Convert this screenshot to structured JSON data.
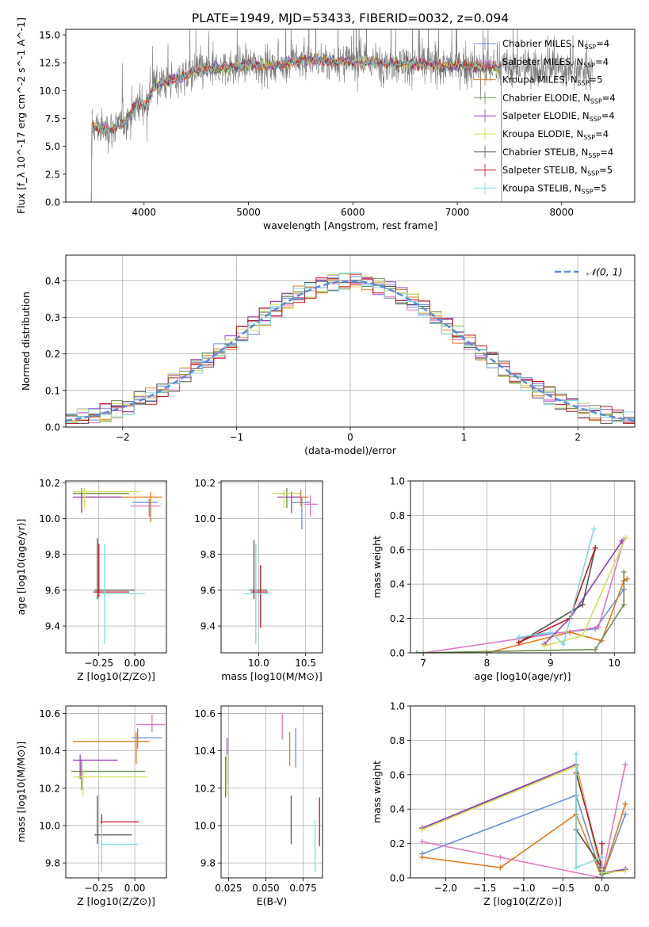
{
  "figure_title": "PLATE=1949, MJD=53433, FIBERID=0032, z=0.094",
  "colors": {
    "Chabrier MILES": "#6a8fd8",
    "Salpeter MILES": "#e377c2",
    "Kroupa MILES": "#e07b20",
    "Chabrier ELODIE": "#6b8e4e",
    "Salpeter ELODIE": "#9540b5",
    "Kroupa ELODIE": "#d4e05a",
    "Chabrier STELIB": "#555555",
    "Salpeter STELIB": "#c0181f",
    "Kroupa STELIB": "#7fd9dd"
  },
  "chart_data": [
    {
      "id": "spectrum",
      "type": "line",
      "xlabel": "wavelength [Angstrom, rest frame]",
      "ylabel": "Flux [f_λ 10^-17 erg cm^-2 s^-1 A^-1]",
      "xlim": [
        3250,
        8700
      ],
      "ylim": [
        0,
        15.5
      ],
      "xticks": [
        4000,
        5000,
        6000,
        7000,
        8000
      ],
      "yticks": [
        0.0,
        2.5,
        5.0,
        7.5,
        10.0,
        12.5,
        15.0
      ],
      "data_range": [
        3500,
        8300
      ],
      "model_range": [
        3500,
        7420
      ],
      "legend_position": "upper-right",
      "legend": [
        {
          "model": "Chabrier MILES",
          "nssp": "4"
        },
        {
          "model": "Salpeter MILES",
          "nssp": "4"
        },
        {
          "model": "Kroupa MILES",
          "nssp": "5"
        },
        {
          "model": "Chabrier ELODIE",
          "nssp": "4"
        },
        {
          "model": "Salpeter ELODIE",
          "nssp": "4"
        },
        {
          "model": "Kroupa ELODIE",
          "nssp": "4"
        },
        {
          "model": "Chabrier STELIB",
          "nssp": "4"
        },
        {
          "model": "Salpeter STELIB",
          "nssp": "5"
        },
        {
          "model": "Kroupa STELIB",
          "nssp": "5"
        }
      ],
      "continuum": [
        [
          3500,
          6.8
        ],
        [
          3650,
          6.5
        ],
        [
          3800,
          7.0
        ],
        [
          3950,
          9.0
        ],
        [
          4000,
          8.5
        ],
        [
          4100,
          10.5
        ],
        [
          4300,
          11.0
        ],
        [
          4500,
          11.8
        ],
        [
          4800,
          12.1
        ],
        [
          5000,
          12.4
        ],
        [
          5200,
          12.2
        ],
        [
          5500,
          12.7
        ],
        [
          5800,
          12.6
        ],
        [
          6000,
          12.6
        ],
        [
          6300,
          12.5
        ],
        [
          6600,
          12.4
        ],
        [
          7000,
          12.2
        ],
        [
          7300,
          12.1
        ],
        [
          7600,
          12.0
        ],
        [
          8000,
          12.0
        ],
        [
          8300,
          11.8
        ]
      ]
    },
    {
      "id": "residuals",
      "type": "histogram",
      "xlabel": "(data-model)/error",
      "ylabel": "Normed distribution",
      "xlim": [
        -2.5,
        2.5
      ],
      "ylim": [
        0,
        0.47
      ],
      "xticks": [
        -2,
        -1,
        0,
        1,
        2
      ],
      "yticks": [
        0.0,
        0.1,
        0.2,
        0.3,
        0.4
      ],
      "grid": true,
      "legend_position": "upper-right",
      "reference_label": "𝒩(0, 1)",
      "bin_width": 0.1
    },
    {
      "id": "age-vs-Z",
      "type": "errorbar",
      "xlabel": "Z [log10(Z/Z⊙)]",
      "ylabel": "age [log10(age/yr)]",
      "xlim": [
        -0.48,
        0.22
      ],
      "ylim": [
        9.25,
        10.21
      ],
      "xticks": [
        -0.25,
        0.0
      ],
      "xtick_labels": [
        "−0.25",
        "0.00"
      ],
      "yticks": [
        9.4,
        9.6,
        9.8,
        10.0,
        10.2
      ],
      "grid": true,
      "points": [
        {
          "model": "Chabrier MILES",
          "x": 0.1,
          "y": 10.09,
          "xerr": [
            0.12,
            0.06
          ],
          "yerr": [
            0.08,
            0.02
          ]
        },
        {
          "model": "Salpeter MILES",
          "x": 0.11,
          "y": 10.07,
          "xerr": [
            0.14,
            0.07
          ],
          "yerr": [
            0.05,
            0.03
          ]
        },
        {
          "model": "Kroupa MILES",
          "x": 0.11,
          "y": 10.12,
          "xerr": [
            0.45,
            0.08
          ],
          "yerr": [
            0.14,
            0.03
          ]
        },
        {
          "model": "Chabrier ELODIE",
          "x": -0.37,
          "y": 10.14,
          "xerr": [
            0.06,
            0.33
          ],
          "yerr": [
            0.11,
            0.03
          ]
        },
        {
          "model": "Salpeter ELODIE",
          "x": -0.37,
          "y": 10.12,
          "xerr": [
            0.06,
            0.28
          ],
          "yerr": [
            0.08,
            0.03
          ]
        },
        {
          "model": "Kroupa ELODIE",
          "x": -0.35,
          "y": 10.15,
          "xerr": [
            0.08,
            0.39
          ],
          "yerr": [
            0.09,
            0.02
          ]
        },
        {
          "model": "Chabrier STELIB",
          "x": -0.26,
          "y": 9.6,
          "xerr": [
            0.02,
            0.26
          ],
          "yerr": [
            0.05,
            0.29
          ]
        },
        {
          "model": "Salpeter STELIB",
          "x": -0.25,
          "y": 9.59,
          "xerr": [
            0.04,
            0.21
          ],
          "yerr": [
            0.03,
            0.27
          ]
        },
        {
          "model": "Kroupa STELIB",
          "x": -0.21,
          "y": 9.58,
          "xerr": [
            0.04,
            0.28
          ],
          "yerr": [
            0.28,
            0.28
          ]
        }
      ]
    },
    {
      "id": "age-vs-mass",
      "type": "errorbar",
      "xlabel": "mass [log10(M/M⊙)]",
      "ylabel": "",
      "xlim": [
        9.6,
        10.68
      ],
      "ylim": [
        9.25,
        10.21
      ],
      "xticks": [
        10.0,
        10.5
      ],
      "yticks": [
        9.4,
        9.6,
        9.8,
        10.0,
        10.2
      ],
      "grid": true,
      "points": [
        {
          "model": "Chabrier MILES",
          "x": 10.46,
          "y": 10.09,
          "xerr": [
            0.1,
            0.09
          ],
          "yerr": [
            0.15,
            0.03
          ]
        },
        {
          "model": "Salpeter MILES",
          "x": 10.55,
          "y": 10.08,
          "xerr": [
            0.07,
            0.08
          ],
          "yerr": [
            0.07,
            0.05
          ]
        },
        {
          "model": "Kroupa MILES",
          "x": 10.45,
          "y": 10.12,
          "xerr": [
            0.1,
            0.08
          ],
          "yerr": [
            0.05,
            0.04
          ]
        },
        {
          "model": "Chabrier ELODIE",
          "x": 10.3,
          "y": 10.14,
          "xerr": [
            0.13,
            0.14
          ],
          "yerr": [
            0.08,
            0.03
          ]
        },
        {
          "model": "Salpeter ELODIE",
          "x": 10.35,
          "y": 10.12,
          "xerr": [
            0.15,
            0.1
          ],
          "yerr": [
            0.09,
            0.03
          ]
        },
        {
          "model": "Kroupa ELODIE",
          "x": 10.27,
          "y": 10.14,
          "xerr": [
            0.12,
            0.16
          ],
          "yerr": [
            0.08,
            0.02
          ]
        },
        {
          "model": "Chabrier STELIB",
          "x": 9.95,
          "y": 9.6,
          "xerr": [
            0.05,
            0.14
          ],
          "yerr": [
            0.05,
            0.28
          ]
        },
        {
          "model": "Salpeter STELIB",
          "x": 10.02,
          "y": 9.59,
          "xerr": [
            0.1,
            0.08
          ],
          "yerr": [
            0.2,
            0.15
          ]
        },
        {
          "model": "Kroupa STELIB",
          "x": 9.97,
          "y": 9.58,
          "xerr": [
            0.13,
            0.13
          ],
          "yerr": [
            0.28,
            0.28
          ]
        }
      ]
    },
    {
      "id": "weight-vs-age",
      "type": "line",
      "xlabel": "age [log10(age/yr)]",
      "ylabel": "mass weight",
      "xlim": [
        6.8,
        10.32
      ],
      "ylim": [
        0,
        1.0
      ],
      "xticks": [
        7,
        8,
        9,
        10
      ],
      "yticks": [
        0.0,
        0.2,
        0.4,
        0.6,
        0.8,
        1.0
      ],
      "grid": true,
      "series": [
        {
          "model": "Chabrier MILES",
          "x": [
            8.5,
            9.7,
            10.15,
            10.15
          ],
          "y": [
            0.09,
            0.14,
            0.37,
            0.37
          ]
        },
        {
          "model": "Salpeter MILES",
          "x": [
            7.0,
            9.75,
            10.15
          ],
          "y": [
            0.0,
            0.15,
            0.66
          ]
        },
        {
          "model": "Kroupa MILES",
          "x": [
            8.0,
            9.3,
            9.8,
            10.15,
            10.2
          ],
          "y": [
            0.0,
            0.12,
            0.07,
            0.42,
            0.43
          ]
        },
        {
          "model": "Chabrier ELODIE",
          "x": [
            6.9,
            9.7,
            10.15,
            10.15
          ],
          "y": [
            0.0,
            0.02,
            0.28,
            0.47
          ]
        },
        {
          "model": "Salpeter ELODIE",
          "x": [
            8.9,
            9.3,
            10.12
          ],
          "y": [
            0.05,
            0.2,
            0.65
          ]
        },
        {
          "model": "Kroupa ELODIE",
          "x": [
            8.9,
            9.5,
            10.18
          ],
          "y": [
            0.04,
            0.1,
            0.67
          ]
        },
        {
          "model": "Chabrier STELIB",
          "x": [
            8.5,
            9.5,
            9.7
          ],
          "y": [
            0.06,
            0.28,
            0.61
          ]
        },
        {
          "model": "Salpeter STELIB",
          "x": [
            8.5,
            9.3,
            9.7
          ],
          "y": [
            0.06,
            0.2,
            0.61
          ]
        },
        {
          "model": "Kroupa STELIB",
          "x": [
            8.5,
            9.0,
            9.2,
            9.68
          ],
          "y": [
            0.09,
            0.12,
            0.05,
            0.72
          ]
        }
      ]
    },
    {
      "id": "mass-vs-Z",
      "type": "errorbar",
      "xlabel": "Z [log10(Z/Z⊙)]",
      "ylabel": "mass [log10(M/M⊙)]",
      "xlim": [
        -0.48,
        0.22
      ],
      "ylim": [
        9.72,
        10.64
      ],
      "xticks": [
        -0.25,
        0.0
      ],
      "xtick_labels": [
        "−0.25",
        "0.00"
      ],
      "yticks": [
        9.8,
        10.0,
        10.2,
        10.4,
        10.6
      ],
      "grid": true,
      "points": [
        {
          "model": "Chabrier MILES",
          "x": 0.02,
          "y": 10.47,
          "xerr": [
            0.04,
            0.17
          ],
          "yerr": [
            0.06,
            0.05
          ]
        },
        {
          "model": "Salpeter MILES",
          "x": 0.12,
          "y": 10.54,
          "xerr": [
            0.11,
            0.09
          ],
          "yerr": [
            0.04,
            0.06
          ]
        },
        {
          "model": "Kroupa MILES",
          "x": 0.01,
          "y": 10.45,
          "xerr": [
            0.44,
            0.09
          ],
          "yerr": [
            0.12,
            0.05
          ]
        },
        {
          "model": "Chabrier ELODIE",
          "x": -0.37,
          "y": 10.29,
          "xerr": [
            0.07,
            0.44
          ],
          "yerr": [
            0.1,
            0.06
          ]
        },
        {
          "model": "Salpeter ELODIE",
          "x": -0.38,
          "y": 10.35,
          "xerr": [
            0.05,
            0.26
          ],
          "yerr": [
            0.1,
            0.03
          ]
        },
        {
          "model": "Kroupa ELODIE",
          "x": -0.36,
          "y": 10.26,
          "xerr": [
            0.07,
            0.45
          ],
          "yerr": [
            0.1,
            0.04
          ]
        },
        {
          "model": "Chabrier STELIB",
          "x": -0.26,
          "y": 9.95,
          "xerr": [
            0.02,
            0.24
          ],
          "yerr": [
            0.05,
            0.21
          ]
        },
        {
          "model": "Salpeter STELIB",
          "x": -0.23,
          "y": 10.02,
          "xerr": [
            0.01,
            0.26
          ],
          "yerr": [
            0.03,
            0.04
          ]
        },
        {
          "model": "Kroupa STELIB",
          "x": -0.23,
          "y": 9.9,
          "xerr": [
            0.01,
            0.25
          ],
          "yerr": [
            0.15,
            0.11
          ]
        }
      ]
    },
    {
      "id": "mass-vs-EBV",
      "type": "errorbar",
      "xlabel": "E(B-V)",
      "ylabel": "",
      "xlim": [
        0.02,
        0.088
      ],
      "ylim": [
        9.72,
        10.64
      ],
      "xticks": [
        0.025,
        0.05,
        0.075
      ],
      "xtick_labels": [
        "0.025",
        "0.050",
        "0.075"
      ],
      "yticks": [
        9.8,
        10.0,
        10.2,
        10.4,
        10.6
      ],
      "grid": true,
      "points": [
        {
          "model": "Chabrier MILES",
          "x": 0.07,
          "y": 10.42,
          "xerr": [
            0,
            0
          ],
          "yerr": [
            0.11,
            0.1
          ]
        },
        {
          "model": "Salpeter MILES",
          "x": 0.061,
          "y": 10.53,
          "xerr": [
            0,
            0
          ],
          "yerr": [
            0.07,
            0.07
          ]
        },
        {
          "model": "Kroupa MILES",
          "x": 0.066,
          "y": 10.41,
          "xerr": [
            0,
            0
          ],
          "yerr": [
            0.09,
            0.09
          ]
        },
        {
          "model": "Chabrier ELODIE",
          "x": 0.023,
          "y": 10.25,
          "xerr": [
            0,
            0
          ],
          "yerr": [
            0.1,
            0.12
          ]
        },
        {
          "model": "Salpeter ELODIE",
          "x": 0.024,
          "y": 10.35,
          "xerr": [
            0,
            0
          ],
          "yerr": [
            0.13,
            0.12
          ]
        },
        {
          "model": "Kroupa ELODIE",
          "x": 0.024,
          "y": 10.27,
          "xerr": [
            0,
            0
          ],
          "yerr": [
            0.11,
            0.11
          ]
        },
        {
          "model": "Chabrier STELIB",
          "x": 0.067,
          "y": 10.03,
          "xerr": [
            0,
            0
          ],
          "yerr": [
            0.13,
            0.13
          ]
        },
        {
          "model": "Salpeter STELIB",
          "x": 0.086,
          "y": 10.02,
          "xerr": [
            0,
            0
          ],
          "yerr": [
            0.13,
            0.13
          ]
        },
        {
          "model": "Kroupa STELIB",
          "x": 0.083,
          "y": 9.89,
          "xerr": [
            0,
            0
          ],
          "yerr": [
            0.14,
            0.14
          ]
        }
      ]
    },
    {
      "id": "weight-vs-Z",
      "type": "line",
      "xlabel": "Z [log10(Z/Z⊙)]",
      "ylabel": "mass weight",
      "xlim": [
        -2.45,
        0.42
      ],
      "ylim": [
        0,
        1.0
      ],
      "xticks": [
        -2.0,
        -1.5,
        -1.0,
        -0.5,
        0.0
      ],
      "xtick_labels": [
        "−2.0",
        "−1.5",
        "−1.0",
        "−0.5",
        "0.0"
      ],
      "yticks": [
        0.0,
        0.2,
        0.4,
        0.6,
        0.8,
        1.0
      ],
      "grid": true,
      "series": [
        {
          "model": "Chabrier MILES",
          "x": [
            -2.3,
            -0.33,
            0.0,
            0.3
          ],
          "y": [
            0.14,
            0.48,
            0.0,
            0.37
          ]
        },
        {
          "model": "Salpeter MILES",
          "x": [
            -2.3,
            -1.3,
            0.0,
            0.3
          ],
          "y": [
            0.21,
            0.12,
            0.0,
            0.66
          ]
        },
        {
          "model": "Kroupa MILES",
          "x": [
            -2.3,
            -1.3,
            -0.33,
            0.0,
            0.3
          ],
          "y": [
            0.12,
            0.06,
            0.37,
            0.0,
            0.43
          ]
        },
        {
          "model": "Chabrier ELODIE",
          "x": [
            -2.3,
            -0.33,
            0.0,
            0.3
          ],
          "y": [
            0.29,
            0.65,
            0.02,
            0.05
          ]
        },
        {
          "model": "Salpeter ELODIE",
          "x": [
            -2.3,
            -0.33,
            0.0,
            0.3
          ],
          "y": [
            0.29,
            0.66,
            0.03,
            0.05
          ]
        },
        {
          "model": "Kroupa ELODIE",
          "x": [
            -2.3,
            -0.33,
            0.0,
            0.3
          ],
          "y": [
            0.28,
            0.65,
            0.03,
            0.04
          ]
        },
        {
          "model": "Chabrier STELIB",
          "x": [
            -0.33,
            -0.33,
            0.0,
            0.0
          ],
          "y": [
            0.61,
            0.28,
            0.06,
            0.04
          ]
        },
        {
          "model": "Salpeter STELIB",
          "x": [
            -0.33,
            0.0,
            0.0
          ],
          "y": [
            0.61,
            0.06,
            0.2
          ]
        },
        {
          "model": "Kroupa STELIB",
          "x": [
            -0.33,
            -0.33,
            0.0,
            0.0
          ],
          "y": [
            0.72,
            0.06,
            0.12,
            0.0
          ]
        }
      ]
    }
  ]
}
